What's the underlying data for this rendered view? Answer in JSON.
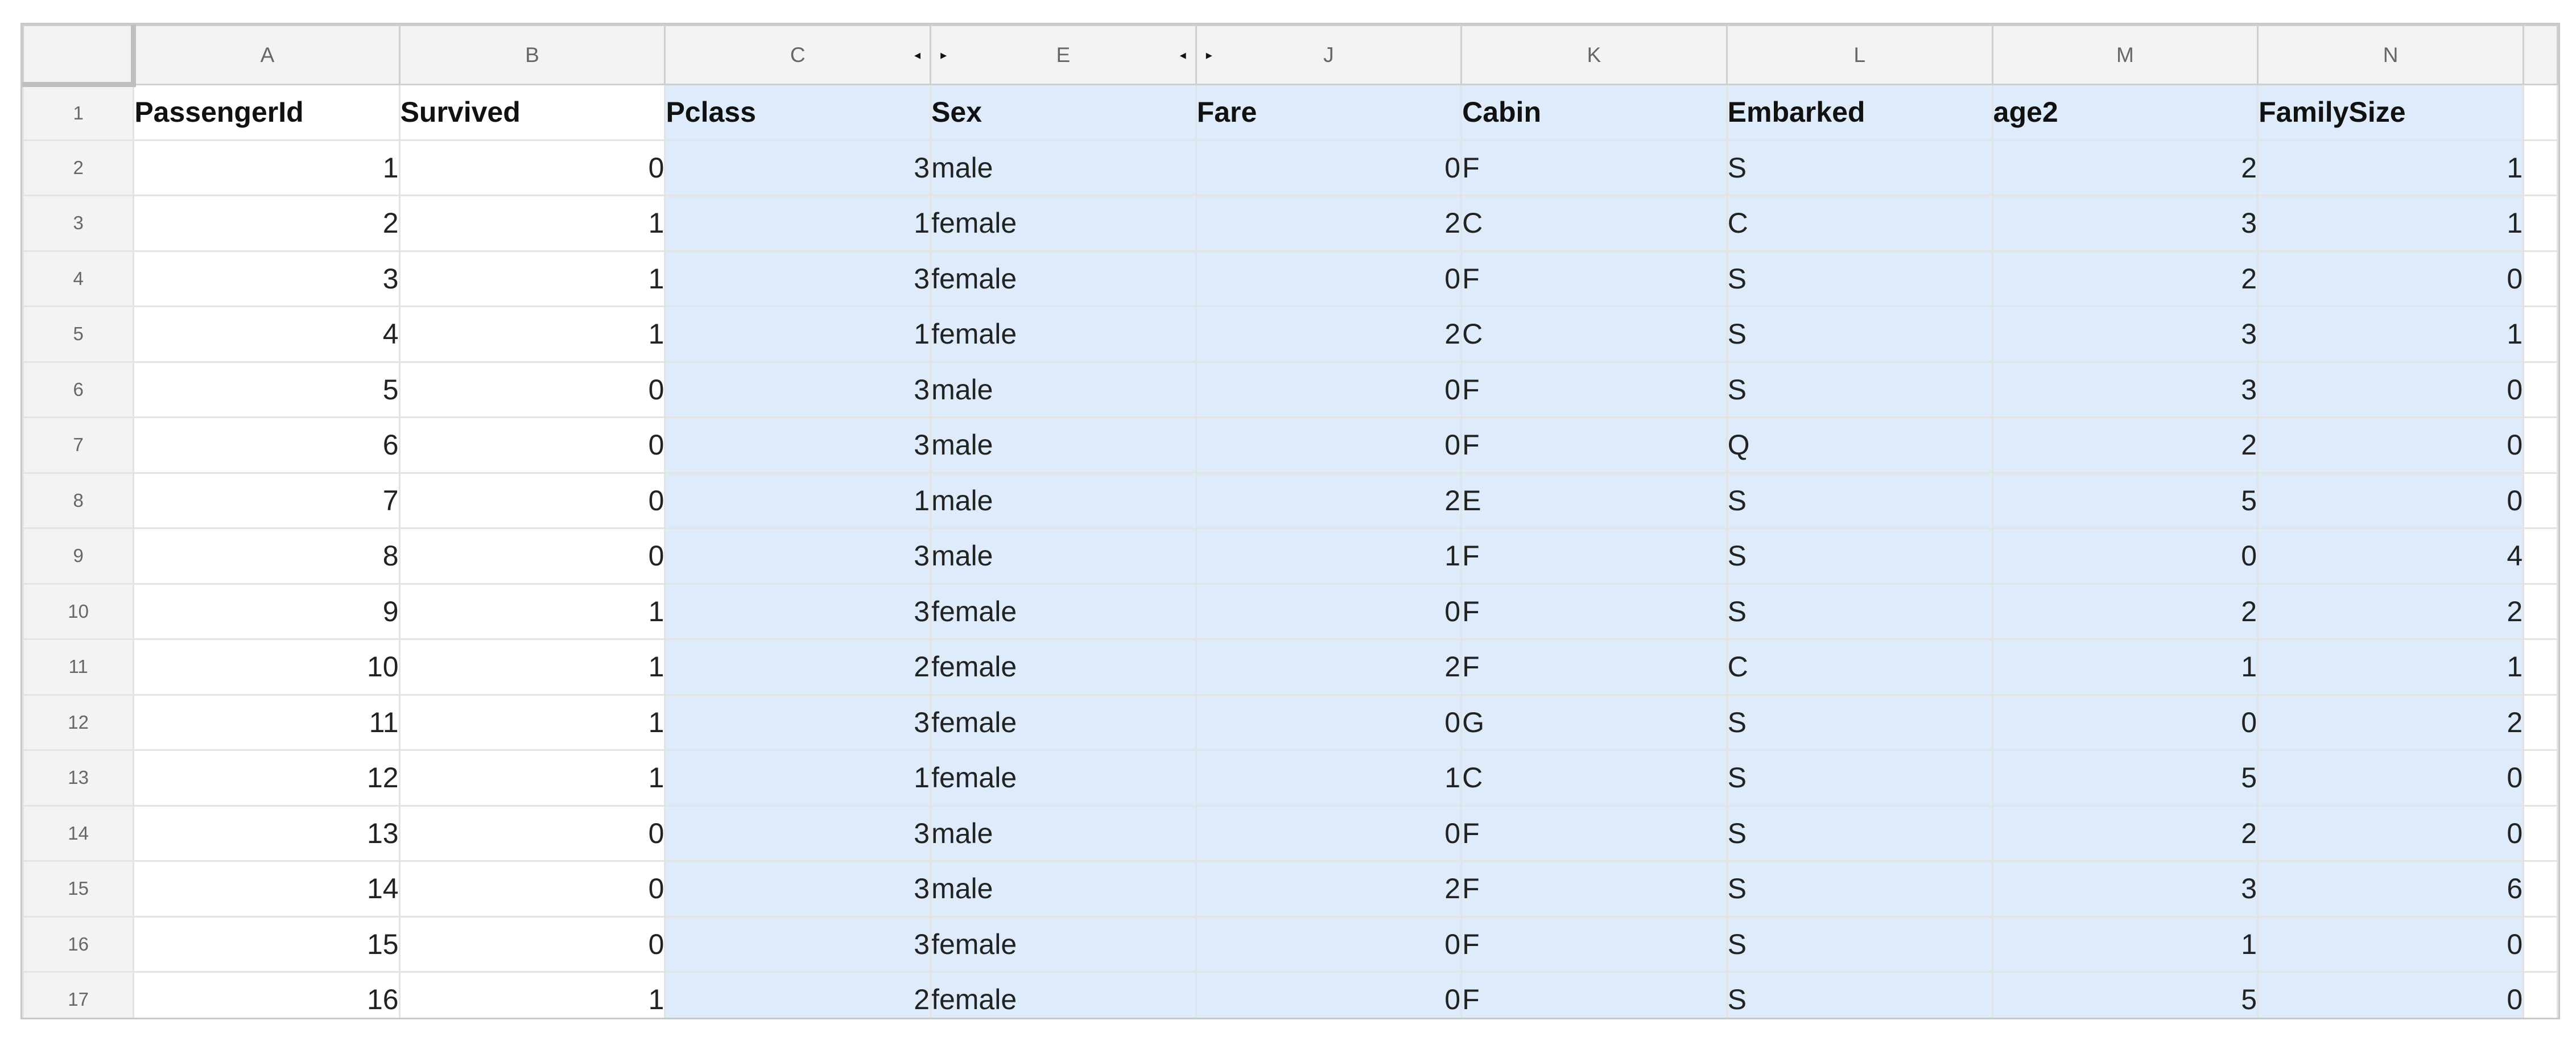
{
  "column_headers": [
    "A",
    "B",
    "C",
    "E",
    "J",
    "K",
    "L",
    "M",
    "N"
  ],
  "hidden_column_markers": {
    "after_C": "◂",
    "before_E": "▸",
    "after_E": "◂",
    "before_J": "▸"
  },
  "row_numbers": [
    "1",
    "2",
    "3",
    "4",
    "5",
    "6",
    "7",
    "8",
    "9",
    "10",
    "11",
    "12",
    "13",
    "14",
    "15",
    "16",
    "17"
  ],
  "field_names": [
    "PassengerId",
    "Survived",
    "Pclass",
    "Sex",
    "Fare",
    "Cabin",
    "Embarked",
    "age2",
    "FamilySize"
  ],
  "rows": [
    [
      "1",
      "0",
      "3",
      "male",
      "0",
      "F",
      "S",
      "2",
      "1"
    ],
    [
      "2",
      "1",
      "1",
      "female",
      "2",
      "C",
      "C",
      "3",
      "1"
    ],
    [
      "3",
      "1",
      "3",
      "female",
      "0",
      "F",
      "S",
      "2",
      "0"
    ],
    [
      "4",
      "1",
      "1",
      "female",
      "2",
      "C",
      "S",
      "3",
      "1"
    ],
    [
      "5",
      "0",
      "3",
      "male",
      "0",
      "F",
      "S",
      "3",
      "0"
    ],
    [
      "6",
      "0",
      "3",
      "male",
      "0",
      "F",
      "Q",
      "2",
      "0"
    ],
    [
      "7",
      "0",
      "1",
      "male",
      "2",
      "E",
      "S",
      "5",
      "0"
    ],
    [
      "8",
      "0",
      "3",
      "male",
      "1",
      "F",
      "S",
      "0",
      "4"
    ],
    [
      "9",
      "1",
      "3",
      "female",
      "0",
      "F",
      "S",
      "2",
      "2"
    ],
    [
      "10",
      "1",
      "2",
      "female",
      "2",
      "F",
      "C",
      "1",
      "1"
    ],
    [
      "11",
      "1",
      "3",
      "female",
      "0",
      "G",
      "S",
      "0",
      "2"
    ],
    [
      "12",
      "1",
      "1",
      "female",
      "1",
      "C",
      "S",
      "5",
      "0"
    ],
    [
      "13",
      "0",
      "3",
      "male",
      "0",
      "F",
      "S",
      "2",
      "0"
    ],
    [
      "14",
      "0",
      "3",
      "male",
      "2",
      "F",
      "S",
      "3",
      "6"
    ],
    [
      "15",
      "0",
      "3",
      "female",
      "0",
      "F",
      "S",
      "1",
      "0"
    ],
    [
      "16",
      "1",
      "2",
      "female",
      "0",
      "F",
      "S",
      "5",
      "0"
    ]
  ],
  "column_types": [
    "num",
    "num",
    "num",
    "txt",
    "num",
    "txt",
    "txt",
    "num",
    "num"
  ],
  "selection": {
    "columns": [
      "C",
      "E",
      "J",
      "K",
      "L",
      "M",
      "N"
    ],
    "color": "#ddebfa"
  }
}
